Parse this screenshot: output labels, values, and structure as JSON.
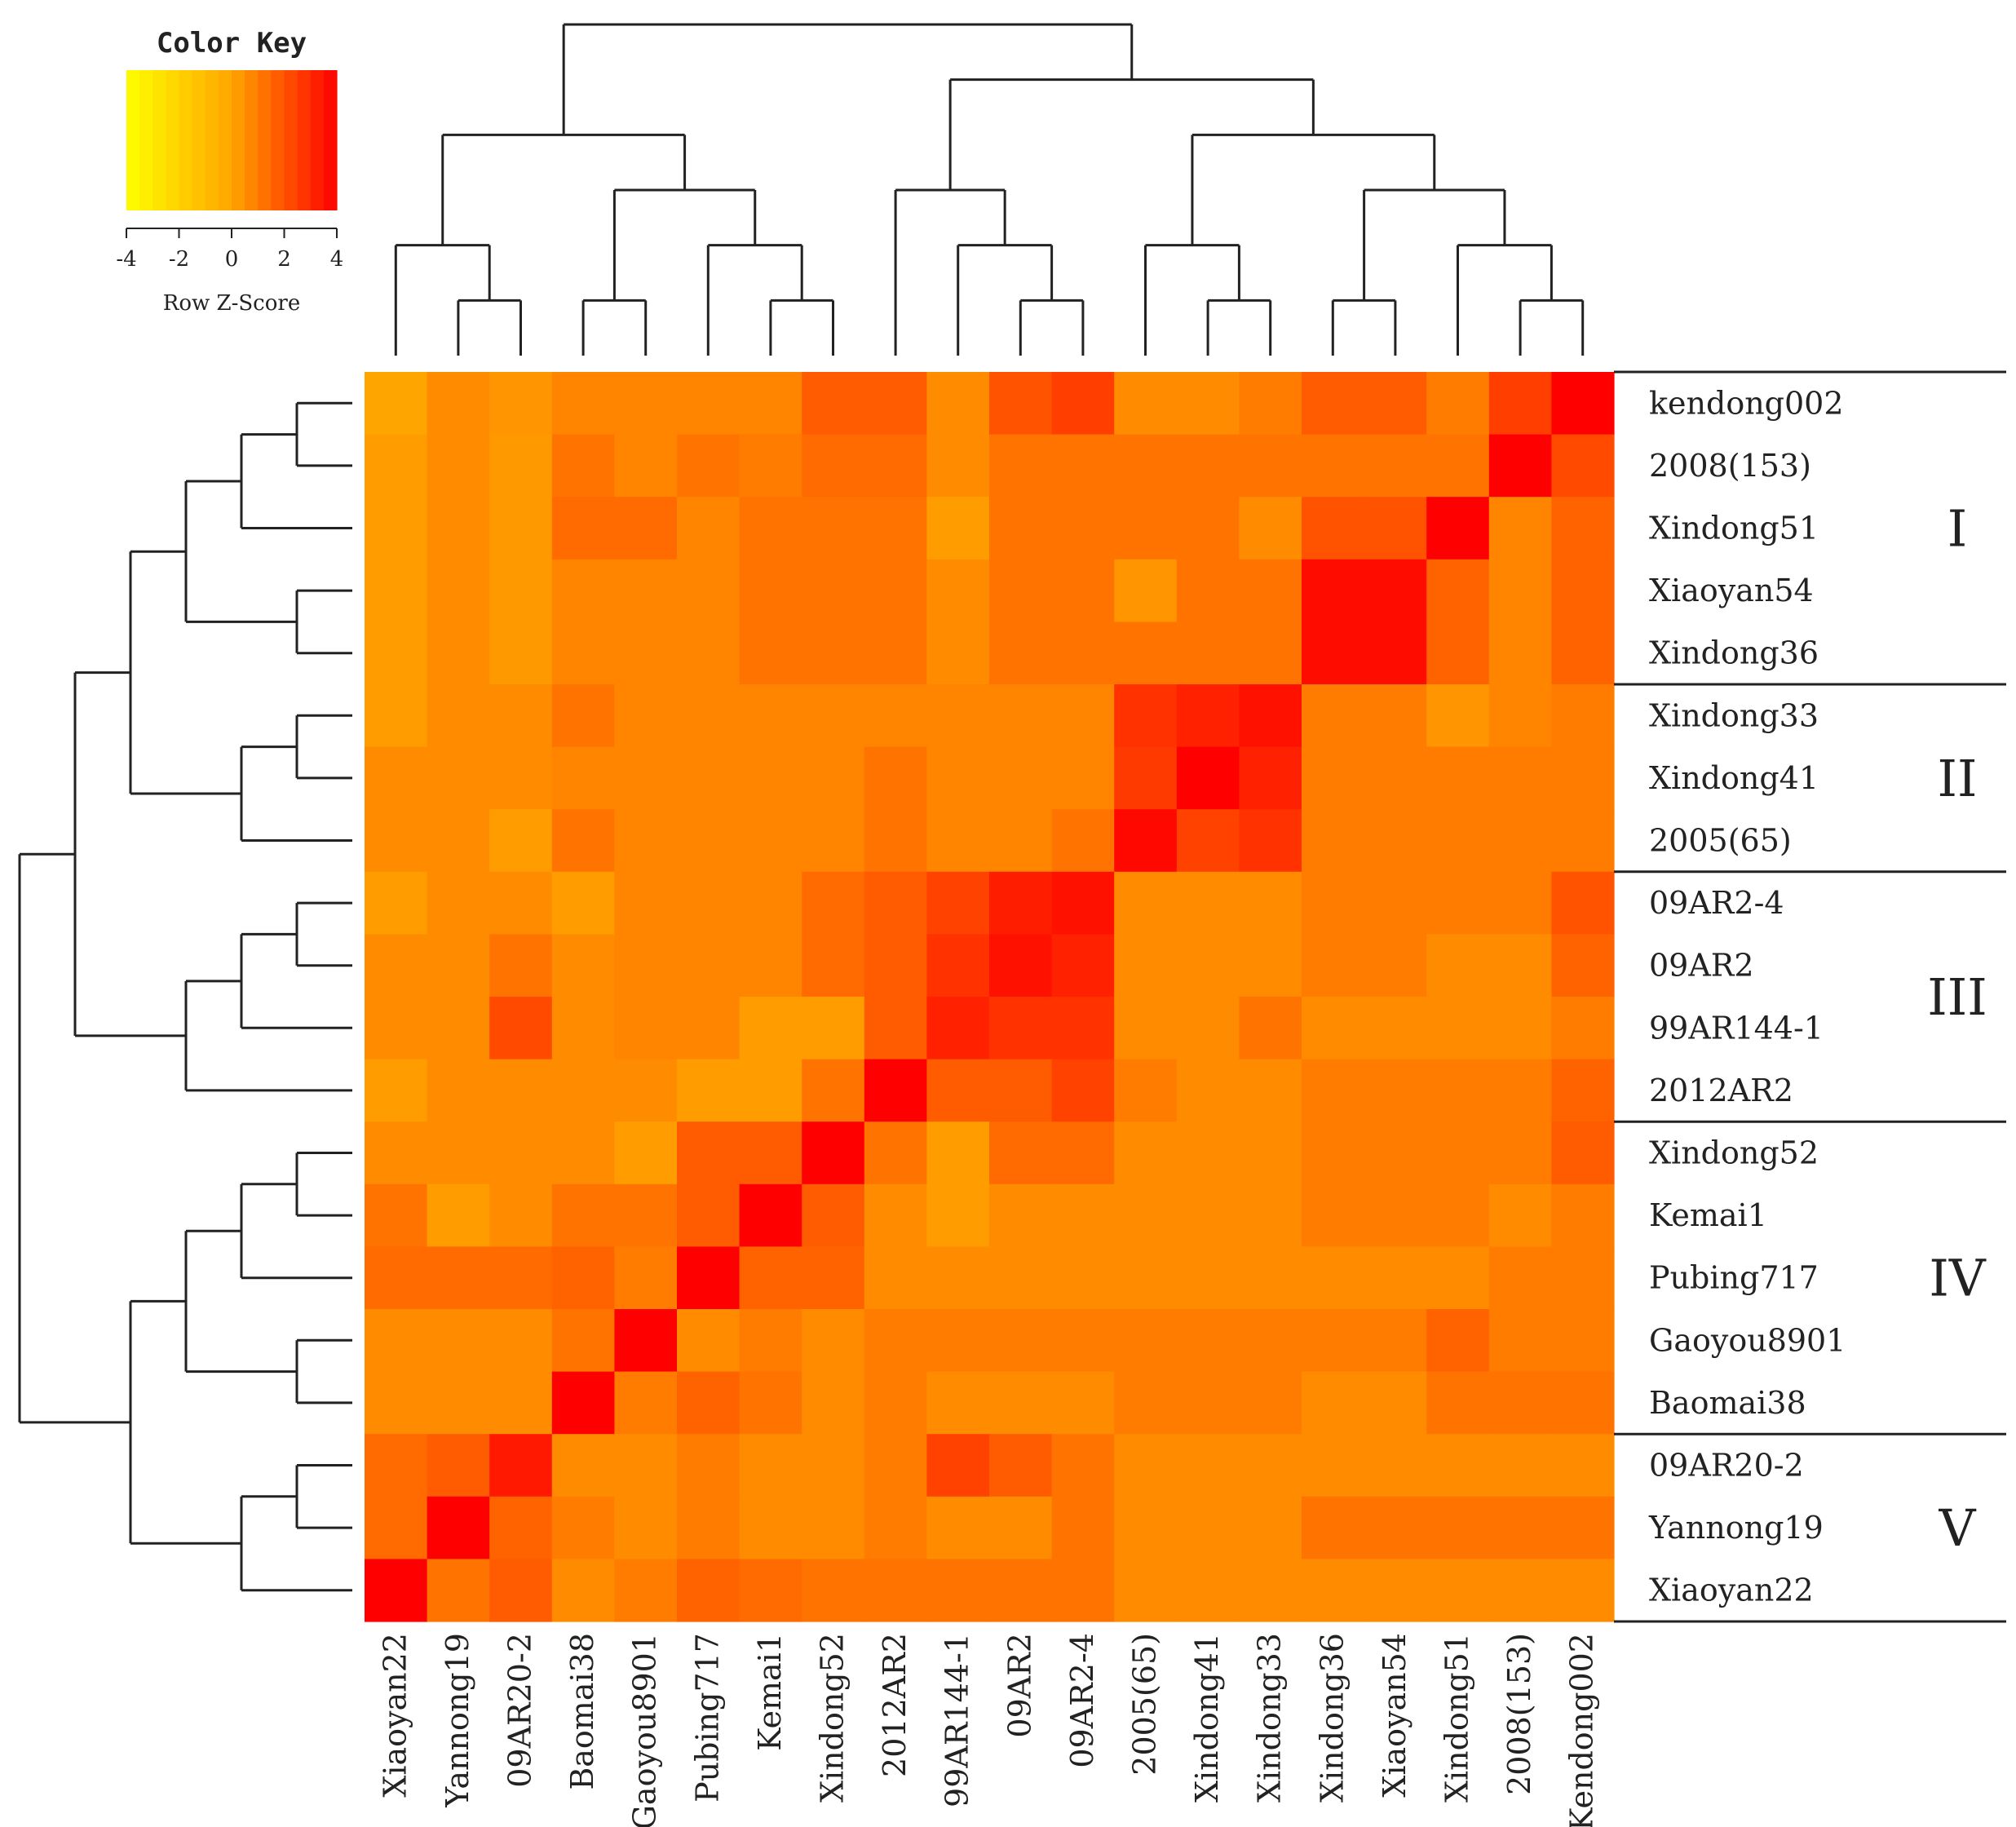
{
  "chart_data": {
    "type": "heatmap",
    "color_key": {
      "title": "Color Key",
      "xlabel": "Row Z-Score",
      "ticks": [
        "-4",
        "-2",
        "0",
        "2",
        "4"
      ],
      "range": [
        -4,
        4
      ],
      "colors": [
        "#ffff00",
        "#ffa500",
        "#ff0000"
      ]
    },
    "row_labels": [
      "kendong002",
      "2008(153)",
      "Xindong51",
      "Xiaoyan54",
      "Xindong36",
      "Xindong33",
      "Xindong41",
      "2005(65)",
      "09AR2-4",
      "09AR2",
      "99AR144-1",
      "2012AR2",
      "Xindong52",
      "Kemai1",
      "Pubing717",
      "Gaoyou8901",
      "Baomai38",
      "09AR20-2",
      "Yannong19",
      "Xiaoyan22"
    ],
    "column_labels": [
      "Xiaoyan22",
      "Yannong19",
      "09AR20-2",
      "Baomai38",
      "Gaoyou8901",
      "Pubing717",
      "Kemai1",
      "Xindong52",
      "2012AR2",
      "99AR144-1",
      "09AR2",
      "09AR2-4",
      "2005(65)",
      "Xindong41",
      "Xindong33",
      "Xindong36",
      "Xiaoyan54",
      "Xindong51",
      "2008(153)",
      "Kendong002"
    ],
    "values": [
      [
        0.0,
        0.6,
        0.4,
        0.8,
        0.8,
        0.8,
        0.8,
        1.8,
        1.8,
        0.6,
        2.0,
        2.5,
        0.6,
        0.6,
        1.0,
        1.8,
        1.8,
        1.0,
        2.5,
        4.0
      ],
      [
        0.2,
        0.6,
        0.3,
        1.2,
        0.8,
        1.2,
        1.0,
        1.4,
        1.4,
        0.6,
        1.2,
        1.2,
        1.2,
        1.2,
        1.2,
        1.2,
        1.2,
        1.2,
        4.0,
        2.2
      ],
      [
        0.2,
        0.6,
        0.3,
        1.4,
        1.4,
        0.8,
        1.2,
        1.2,
        1.2,
        0.2,
        1.2,
        1.2,
        1.2,
        1.2,
        0.6,
        2.0,
        2.0,
        4.0,
        0.8,
        1.6
      ],
      [
        0.2,
        0.6,
        0.3,
        0.8,
        0.8,
        0.8,
        1.2,
        1.2,
        1.2,
        0.6,
        1.2,
        1.2,
        0.4,
        1.2,
        1.2,
        3.7,
        3.7,
        1.6,
        0.8,
        1.6
      ],
      [
        0.2,
        0.6,
        0.3,
        0.8,
        0.8,
        0.8,
        1.2,
        1.2,
        1.2,
        0.6,
        1.2,
        1.2,
        1.2,
        1.2,
        1.2,
        3.7,
        3.7,
        1.6,
        0.8,
        1.6
      ],
      [
        0.2,
        0.6,
        0.6,
        1.2,
        0.8,
        0.8,
        0.8,
        0.8,
        0.8,
        0.8,
        0.8,
        0.8,
        2.8,
        3.2,
        3.6,
        1.0,
        1.0,
        0.4,
        0.8,
        1.0
      ],
      [
        0.6,
        0.6,
        0.6,
        0.8,
        0.8,
        0.8,
        0.8,
        0.8,
        1.2,
        0.8,
        0.8,
        0.8,
        2.6,
        4.0,
        3.2,
        1.0,
        1.0,
        1.0,
        1.0,
        1.0
      ],
      [
        0.6,
        0.6,
        0.2,
        1.2,
        0.8,
        0.8,
        0.8,
        0.8,
        1.2,
        0.8,
        0.8,
        1.2,
        3.8,
        2.4,
        2.8,
        1.0,
        1.0,
        1.0,
        1.0,
        1.0
      ],
      [
        0.2,
        0.6,
        0.6,
        0.2,
        0.8,
        0.8,
        0.8,
        1.4,
        1.8,
        2.4,
        3.3,
        3.6,
        0.6,
        0.6,
        0.6,
        1.0,
        1.0,
        1.0,
        1.0,
        2.0
      ],
      [
        0.6,
        0.6,
        1.2,
        0.6,
        0.8,
        0.8,
        0.8,
        1.4,
        1.8,
        2.8,
        3.6,
        3.2,
        0.6,
        0.6,
        0.6,
        1.0,
        1.0,
        0.6,
        0.6,
        1.6
      ],
      [
        0.6,
        0.6,
        2.2,
        0.6,
        0.8,
        0.8,
        0.2,
        0.2,
        1.8,
        3.2,
        2.8,
        2.8,
        0.6,
        0.6,
        1.2,
        0.6,
        0.6,
        0.6,
        0.6,
        1.0
      ],
      [
        0.2,
        0.6,
        0.6,
        0.6,
        0.6,
        0.2,
        0.2,
        1.2,
        4.0,
        1.8,
        1.8,
        2.4,
        1.0,
        0.6,
        0.6,
        1.0,
        1.0,
        1.0,
        1.0,
        1.6
      ],
      [
        0.6,
        0.6,
        0.6,
        0.6,
        0.2,
        1.8,
        1.8,
        4.0,
        1.2,
        0.2,
        1.4,
        1.4,
        0.6,
        0.6,
        0.6,
        1.0,
        1.0,
        1.0,
        1.0,
        1.8
      ],
      [
        1.2,
        0.2,
        0.6,
        1.2,
        1.2,
        1.8,
        4.0,
        1.8,
        0.6,
        0.2,
        0.6,
        0.6,
        0.6,
        0.6,
        0.6,
        1.0,
        1.0,
        1.0,
        0.6,
        1.0
      ],
      [
        1.4,
        1.4,
        1.4,
        1.6,
        1.0,
        4.0,
        1.6,
        1.6,
        0.6,
        0.6,
        0.6,
        0.6,
        0.6,
        0.6,
        0.6,
        0.6,
        0.6,
        0.6,
        1.0,
        1.0
      ],
      [
        0.6,
        0.6,
        0.6,
        1.2,
        4.0,
        0.6,
        1.0,
        0.6,
        1.0,
        1.0,
        1.0,
        1.0,
        1.0,
        1.0,
        1.0,
        1.0,
        1.0,
        1.6,
        1.0,
        1.0
      ],
      [
        0.6,
        0.6,
        0.6,
        4.0,
        1.0,
        1.6,
        1.2,
        0.6,
        1.0,
        0.6,
        0.6,
        0.6,
        1.0,
        1.0,
        1.0,
        0.6,
        0.6,
        1.2,
        1.2,
        1.2
      ],
      [
        1.4,
        1.8,
        3.4,
        0.6,
        0.6,
        1.0,
        0.6,
        0.6,
        1.0,
        2.4,
        1.8,
        1.2,
        0.6,
        0.6,
        0.6,
        0.6,
        0.6,
        0.6,
        0.6,
        0.6
      ],
      [
        1.4,
        4.0,
        1.6,
        1.0,
        0.6,
        1.0,
        0.6,
        0.6,
        1.0,
        0.6,
        0.6,
        1.2,
        0.6,
        0.6,
        0.6,
        1.2,
        1.2,
        1.2,
        1.2,
        1.2
      ],
      [
        4.0,
        1.2,
        1.8,
        0.6,
        1.0,
        1.6,
        1.4,
        1.2,
        1.2,
        1.2,
        1.2,
        1.2,
        0.6,
        0.6,
        0.6,
        0.6,
        0.6,
        0.6,
        0.6,
        0.6
      ]
    ],
    "groups": [
      {
        "label": "I",
        "rows": [
          0,
          4
        ]
      },
      {
        "label": "II",
        "rows": [
          5,
          7
        ]
      },
      {
        "label": "III",
        "rows": [
          8,
          11
        ]
      },
      {
        "label": "IV",
        "rows": [
          12,
          16
        ]
      },
      {
        "label": "V",
        "rows": [
          17,
          19
        ]
      }
    ],
    "row_dendrogram": "((((((kendong002,2008(153)),Xindong51),(Xiaoyan54,Xindong36)),((Xindong33,Xindong41),2005(65))),(((09AR2-4,09AR2),99AR144-1),2012AR2)),((((Xindong52,Kemai1),Pubing717),(Gaoyou8901,Baomai38)),((09AR20-2,Yannong19),Xiaoyan22)))",
    "column_dendrogram": "(((Xiaoyan22,(Yannong19,09AR20-2)),((Baomai38,Gaoyou8901),(Pubing717,(Kemai1,Xindong52)))),((2012AR2,(99AR144-1,(09AR2,09AR2-4))),((2005(65),(Xindong41,Xindong33)),((Xindong36,Xiaoyan54),(Xindong51,(2008(153),Kendong002))))))"
  }
}
